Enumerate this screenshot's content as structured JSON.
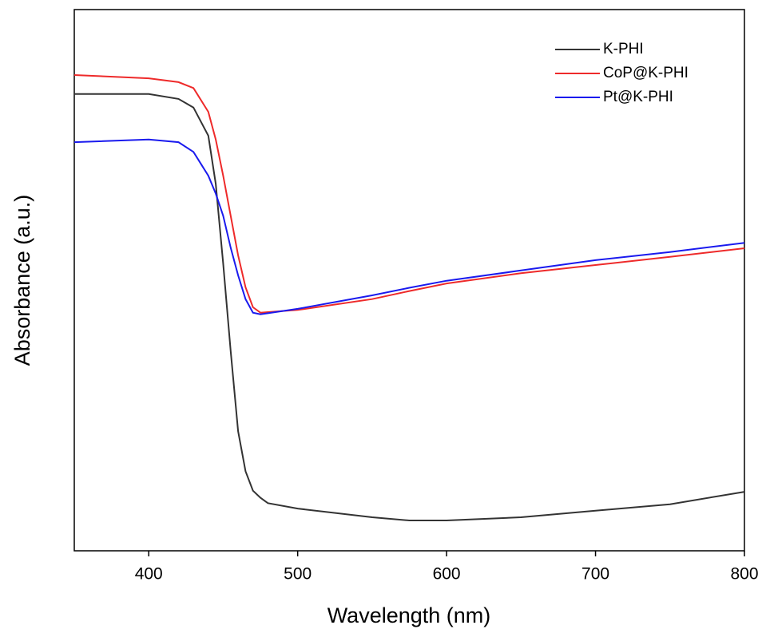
{
  "chart_data": {
    "type": "line",
    "x_label": "Wavelength (nm)",
    "y_label": "Absorbance (a.u.)",
    "x": [
      350,
      400,
      420,
      430,
      440,
      445,
      450,
      455,
      460,
      465,
      470,
      475,
      480,
      500,
      550,
      575,
      600,
      650,
      700,
      750,
      800
    ],
    "series": [
      {
        "name": "K-PHI",
        "color": "#333333",
        "values": [
          0.844,
          0.844,
          0.835,
          0.819,
          0.767,
          0.678,
          0.531,
          0.369,
          0.221,
          0.147,
          0.111,
          0.098,
          0.088,
          0.078,
          0.062,
          0.056,
          0.056,
          0.062,
          0.074,
          0.086,
          0.109
        ]
      },
      {
        "name": "CoP@K-PHI",
        "color": "#ee2a2a",
        "values": [
          0.879,
          0.873,
          0.866,
          0.855,
          0.811,
          0.76,
          0.693,
          0.619,
          0.546,
          0.487,
          0.45,
          0.44,
          0.441,
          0.445,
          0.465,
          0.48,
          0.494,
          0.513,
          0.528,
          0.543,
          0.559
        ]
      },
      {
        "name": "Pt@K-PHI",
        "color": "#1a1aee",
        "values": [
          0.755,
          0.76,
          0.755,
          0.737,
          0.693,
          0.66,
          0.619,
          0.56,
          0.509,
          0.465,
          0.44,
          0.437,
          0.439,
          0.447,
          0.472,
          0.486,
          0.499,
          0.518,
          0.537,
          0.552,
          0.569
        ]
      }
    ],
    "xlim": [
      350,
      800
    ],
    "xticks": [
      400,
      500,
      600,
      700,
      800
    ],
    "ylim": [
      0,
      1
    ],
    "legend": "top-right"
  }
}
